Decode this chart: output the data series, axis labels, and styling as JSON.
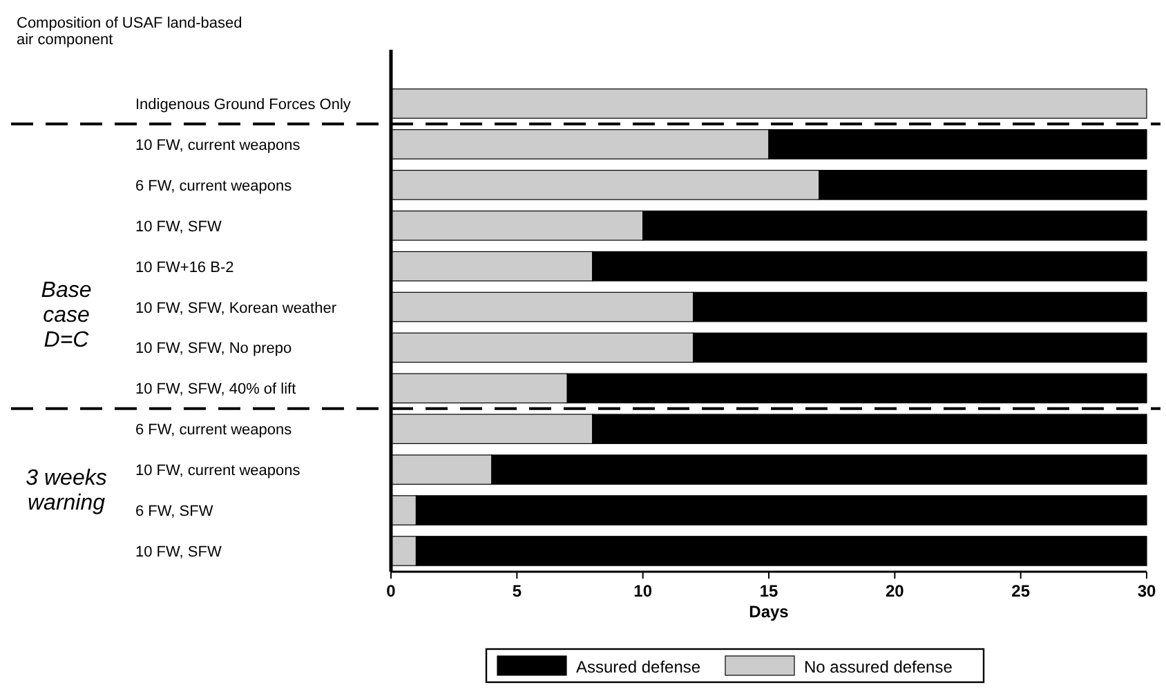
{
  "chart_data": {
    "type": "bar",
    "orientation": "horizontal",
    "stacked": true,
    "categories": [
      "Indigenous Ground Forces Only",
      "10 FW, current weapons",
      "6 FW, current weapons",
      "10 FW, SFW",
      "10 FW+16 B-2",
      "10 FW, SFW, Korean weather",
      "10 FW, SFW, No prepo",
      "10 FW, SFW, 40% of lift",
      "6 FW, current weapons",
      "10 FW, current weapons",
      "6 FW, SFW",
      "10 FW, SFW"
    ],
    "series": [
      {
        "name": "No assured defense",
        "color": "#cccccc",
        "values": [
          30,
          15,
          17,
          10,
          8,
          12,
          12,
          7,
          8,
          4,
          1,
          1
        ]
      },
      {
        "name": "Assured defense",
        "color": "#000000",
        "values": [
          0,
          15,
          13,
          20,
          22,
          18,
          18,
          23,
          22,
          26,
          29,
          29
        ]
      }
    ],
    "xlim": [
      0,
      30
    ],
    "xticks": [
      0,
      5,
      10,
      15,
      20,
      25,
      30
    ],
    "xlabel": "Days",
    "legend": "bottom",
    "ref_lines": [
      {
        "axis": "y",
        "value": "Indigenous Ground Forces Only",
        "line_style": "dashed",
        "color": "#000000"
      },
      {
        "axis": "y",
        "value": "10 FW, SFW, 40% of lift",
        "line_style": "dashed",
        "color": "#000000"
      }
    ],
    "annotations": [
      "Composition of USAF land-based\nair component",
      "Base\ncase\nD=C",
      "3 weeks\nwarning"
    ]
  }
}
